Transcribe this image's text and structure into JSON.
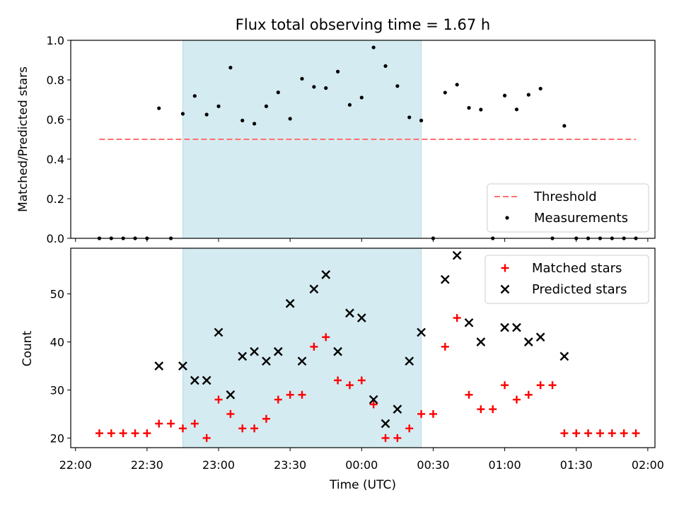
{
  "chart_data": [
    {
      "type": "scatter",
      "title": "Flux total observing time = 1.67 h",
      "xlabel": "",
      "ylabel": "Matched/Predicted stars",
      "ylim": [
        0,
        1.0
      ],
      "yticks": [
        "0.0",
        "0.2",
        "0.4",
        "0.6",
        "0.8",
        "1.0"
      ],
      "shaded_region": {
        "x_start": "22:45",
        "x_end": "00:25",
        "color": "#d4ebf1"
      },
      "threshold": {
        "name": "Threshold",
        "value": 0.5,
        "x_start": "22:10",
        "x_end": "01:55",
        "color": "#ff7070",
        "style": "dashed"
      },
      "series": [
        {
          "name": "Measurements",
          "marker": "dot",
          "color": "#000000",
          "x": [
            "22:10",
            "22:15",
            "22:20",
            "22:25",
            "22:30",
            "22:35",
            "22:40",
            "22:45",
            "22:50",
            "22:55",
            "23:00",
            "23:05",
            "23:10",
            "23:15",
            "23:20",
            "23:25",
            "23:30",
            "23:35",
            "23:40",
            "23:45",
            "23:50",
            "23:55",
            "00:00",
            "00:05",
            "00:10",
            "00:15",
            "00:20",
            "00:25",
            "00:30",
            "00:35",
            "00:40",
            "00:45",
            "00:50",
            "00:55",
            "01:00",
            "01:05",
            "01:10",
            "01:15",
            "01:20",
            "01:25",
            "01:30",
            "01:35",
            "01:40",
            "01:45",
            "01:50",
            "01:55"
          ],
          "values": [
            0,
            0,
            0,
            0,
            0,
            0.657,
            0,
            0.629,
            0.719,
            0.625,
            0.667,
            0.862,
            0.595,
            0.579,
            0.667,
            0.737,
            0.604,
            0.806,
            0.765,
            0.759,
            0.842,
            0.674,
            0.711,
            0.964,
            0.87,
            0.769,
            0.611,
            0.595,
            0,
            0.736,
            0.776,
            0.659,
            0.65,
            0,
            0.721,
            0.651,
            0.725,
            0.756,
            0,
            0.568,
            0,
            0,
            0,
            0,
            0,
            0
          ]
        }
      ],
      "legend": {
        "position": "bottom-right",
        "entries": [
          "Threshold",
          "Measurements"
        ]
      }
    },
    {
      "type": "scatter",
      "xlabel": "Time (UTC)",
      "ylabel": "Count",
      "ylim": [
        18,
        59.5
      ],
      "yticks": [
        "20",
        "30",
        "40",
        "50"
      ],
      "xlim": [
        "21:58",
        "02:03"
      ],
      "xticks": [
        "22:00",
        "22:30",
        "23:00",
        "23:30",
        "00:00",
        "00:30",
        "01:00",
        "01:30",
        "02:00"
      ],
      "shaded_region": {
        "x_start": "22:45",
        "x_end": "00:25",
        "color": "#d4ebf1"
      },
      "series": [
        {
          "name": "Matched stars",
          "marker": "plus",
          "color": "#ff0000",
          "x": [
            "22:10",
            "22:15",
            "22:20",
            "22:25",
            "22:30",
            "22:35",
            "22:40",
            "22:45",
            "22:50",
            "22:55",
            "23:00",
            "23:05",
            "23:10",
            "23:15",
            "23:20",
            "23:25",
            "23:30",
            "23:35",
            "23:40",
            "23:45",
            "23:50",
            "23:55",
            "00:00",
            "00:05",
            "00:10",
            "00:15",
            "00:20",
            "00:25",
            "00:30",
            "00:35",
            "00:40",
            "00:45",
            "00:50",
            "00:55",
            "01:00",
            "01:05",
            "01:10",
            "01:15",
            "01:20",
            "01:25",
            "01:30",
            "01:35",
            "01:40",
            "01:45",
            "01:50",
            "01:55"
          ],
          "values": [
            21,
            21,
            21,
            21,
            21,
            23,
            23,
            22,
            23,
            20,
            28,
            25,
            22,
            22,
            24,
            28,
            29,
            29,
            39,
            41,
            32,
            31,
            32,
            27,
            20,
            20,
            22,
            25,
            25,
            39,
            45,
            29,
            26,
            26,
            31,
            28,
            29,
            31,
            31,
            21,
            21,
            21,
            21,
            21,
            21,
            21
          ]
        },
        {
          "name": "Predicted stars",
          "marker": "x",
          "color": "#000000",
          "x": [
            "22:35",
            "22:45",
            "22:50",
            "22:55",
            "23:00",
            "23:05",
            "23:10",
            "23:15",
            "23:20",
            "23:25",
            "23:30",
            "23:35",
            "23:40",
            "23:45",
            "23:50",
            "23:55",
            "00:00",
            "00:05",
            "00:10",
            "00:15",
            "00:20",
            "00:25",
            "00:35",
            "00:40",
            "00:45",
            "00:50",
            "01:00",
            "01:05",
            "01:10",
            "01:15",
            "01:25"
          ],
          "values": [
            35,
            35,
            32,
            32,
            42,
            29,
            37,
            38,
            36,
            38,
            48,
            36,
            51,
            54,
            38,
            46,
            45,
            28,
            23,
            26,
            36,
            42,
            53,
            58,
            44,
            40,
            43,
            43,
            40,
            41,
            37
          ]
        }
      ],
      "legend": {
        "position": "top-right",
        "entries": [
          "Matched stars",
          "Predicted stars"
        ]
      }
    }
  ]
}
